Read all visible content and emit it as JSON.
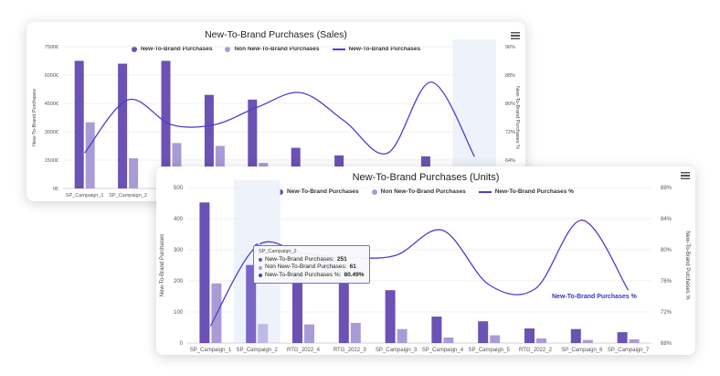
{
  "colors": {
    "ntb": "#6b52b4",
    "non_ntb": "#a99cd6",
    "line": "#4b3fcf",
    "highlight_band": "#eef2fa",
    "grid": "#ececec",
    "axis_text": "#555555"
  },
  "icons": {
    "menu": "hamburger-menu-icon"
  },
  "chart_data": [
    {
      "type": "bar",
      "title": "New-To-Brand Purchases (Sales)",
      "legend_position": "top-center",
      "legend": [
        "New-To-Brand Purchases",
        "Non New-To-Brand Purchases",
        "New-To-Brand Purchases"
      ],
      "ylabel": "New-To-Brand Purchases",
      "y2label": "New-To-Brand Purchases %",
      "ylim": [
        0,
        7500
      ],
      "y_ticks": [
        "0€",
        "1500€",
        "3000€",
        "4500€",
        "6000€",
        "7500€"
      ],
      "y2lim": [
        56,
        96
      ],
      "y2_ticks": [
        "64%",
        "72%",
        "80%",
        "88%",
        "96%"
      ],
      "categories": [
        "SP_Campaign_1",
        "SP_Campaign_2",
        "",
        "",
        "",
        "",
        "",
        "",
        "",
        ""
      ],
      "highlight_index": 9,
      "series": [
        {
          "name": "New-To-Brand Purchases",
          "values": [
            6750,
            6600,
            6750,
            4950,
            4700,
            2150,
            1750,
            800,
            1700,
            300
          ]
        },
        {
          "name": "Non New-To-Brand Purchases",
          "values": [
            3500,
            1600,
            2400,
            2250,
            1350,
            200,
            150,
            200,
            100,
            80
          ]
        },
        {
          "name": "New-To-Brand Purchases",
          "values": [
            66,
            81,
            74,
            74,
            79,
            83,
            75,
            66,
            86,
            65
          ]
        }
      ]
    },
    {
      "type": "bar",
      "title": "New-To-Brand Purchases (Units)",
      "legend_position": "top-center",
      "legend": [
        "New-To-Brand Purchases",
        "Non New-To-Brand Purchases",
        "New-To-Brand Purchases %"
      ],
      "ylabel": "New-To-Brand Purchases",
      "y2label": "New-To-Brand Purchases %",
      "ylim": [
        0,
        500
      ],
      "y_ticks": [
        "0",
        "100",
        "200",
        "300",
        "400",
        "500"
      ],
      "y2lim": [
        68,
        88
      ],
      "y2_ticks": [
        "68%",
        "72%",
        "76%",
        "80%",
        "84%",
        "88%"
      ],
      "categories": [
        "SP_Campaign_1",
        "SP_Campaign_2",
        "RTG_2022_4",
        "RTG_2022_3",
        "SP_Campaign_3",
        "SP_Campaign_4",
        "SP_Campaign_5",
        "RTG_2022_2",
        "SP_Campaign_6",
        "SP_Campaign_7"
      ],
      "highlight_index": 1,
      "series": [
        {
          "name": "New-To-Brand Purchases",
          "values": [
            452,
            251,
            228,
            205,
            170,
            85,
            70,
            47,
            45,
            35
          ]
        },
        {
          "name": "Non New-To-Brand Purchases",
          "values": [
            192,
            61,
            60,
            65,
            45,
            18,
            25,
            15,
            10,
            12
          ]
        },
        {
          "name": "New-To-Brand Purchases %",
          "values": [
            70.2,
            80.49,
            79.5,
            79.0,
            79.3,
            82.5,
            75.5,
            75.0,
            83.8,
            74.8
          ]
        }
      ],
      "tooltip": {
        "title": "SP_Campaign_2",
        "rows": [
          {
            "label": "New-To-Brand Purchases:",
            "value": "251"
          },
          {
            "label": "Non New-To-Brand Purchases:",
            "value": "61"
          },
          {
            "label": "New-To-Brand Purchases %:",
            "value": "80.49%"
          }
        ]
      },
      "annotation": "New-To-Brand Purchases %"
    }
  ]
}
